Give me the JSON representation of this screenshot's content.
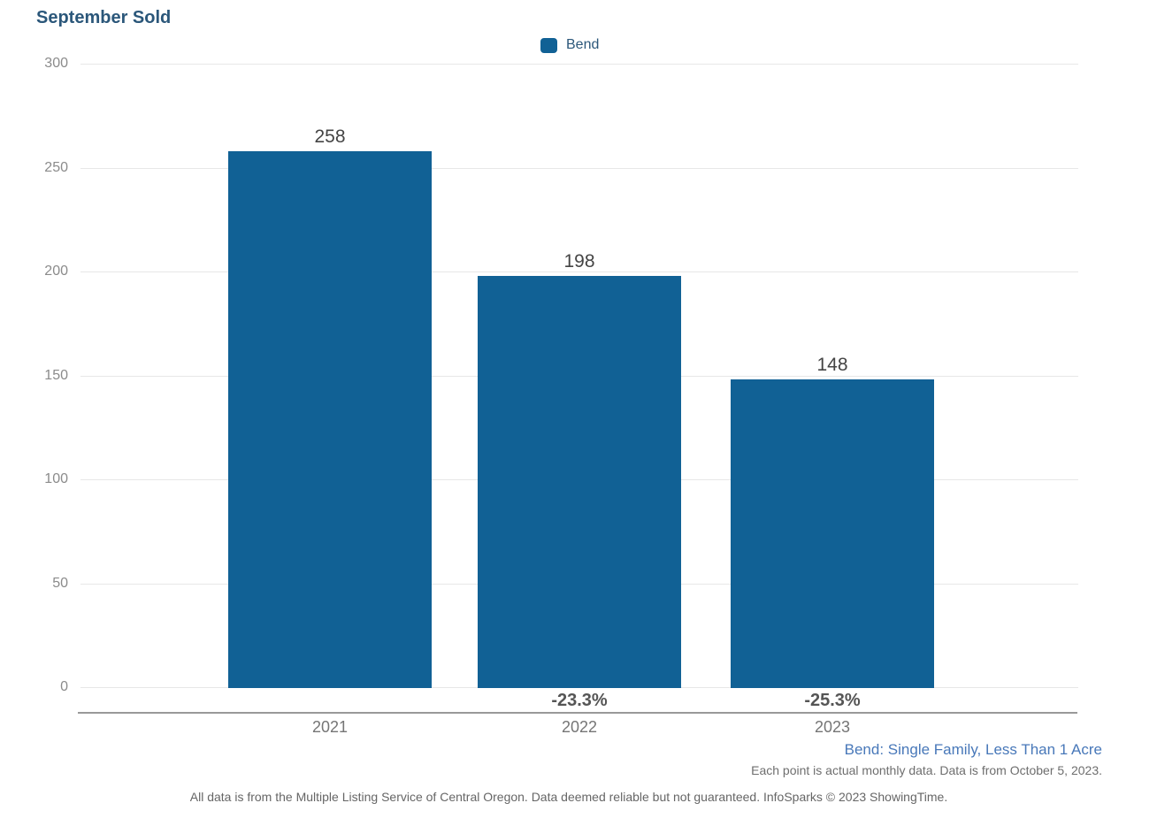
{
  "chart": {
    "title": "September Sold"
  },
  "legend": {
    "items": [
      {
        "label": "Bend",
        "color": "#116195"
      }
    ]
  },
  "chart_data": {
    "type": "bar",
    "title": "September Sold",
    "categories": [
      "2021",
      "2022",
      "2023"
    ],
    "series": [
      {
        "name": "Bend",
        "values": [
          258,
          198,
          148
        ]
      }
    ],
    "bar_value_labels": [
      "258",
      "198",
      "148"
    ],
    "pct_change_labels": [
      "",
      "-23.3%",
      "-25.3%"
    ],
    "y_ticks": [
      0,
      50,
      100,
      150,
      200,
      250,
      300
    ],
    "ylim": [
      0,
      300
    ],
    "xlabel": "",
    "ylabel": "",
    "grid": true,
    "legend_position": "top-center",
    "bar_color": "#116195"
  },
  "footer": {
    "series_note": "Bend: Single Family, Less Than 1 Acre",
    "data_note": "Each point is actual monthly data. Data is from October 5, 2023.",
    "disclaimer": "All data is from the Multiple Listing Service of Central Oregon. Data deemed reliable but not guaranteed. InfoSparks © 2023 ShowingTime."
  },
  "colors": {
    "bar": "#116195",
    "title_text": "#2b577a",
    "legend_text": "#2b577a",
    "footer_link": "#4878b9",
    "grid_line": "#e7e7e7",
    "axis_line": "#999999",
    "tick_text": "#8b8b8b"
  }
}
